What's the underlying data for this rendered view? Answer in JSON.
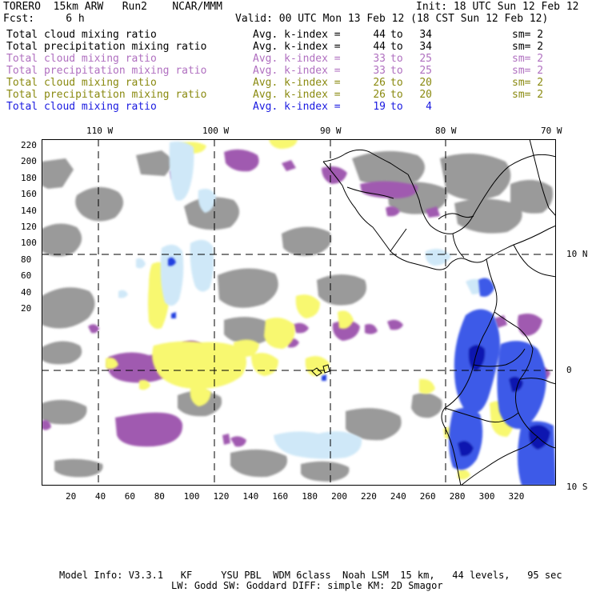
{
  "header": {
    "model": "TORERO  15km ARW   Run2    NCAR/MMM",
    "init": "Init: 18 UTC Sun 12 Feb 12",
    "fcst": "Fcst:     6 h",
    "valid": "Valid: 00 UTC Mon 13 Feb 12 (18 CST Sun 12 Feb 12)"
  },
  "legend": [
    {
      "name": "Total cloud mixing ratio",
      "kidx_label": "Avg. k-index =",
      "from": "44",
      "to_label": "to",
      "to": "34",
      "sm": "sm= 2",
      "color": "#000000"
    },
    {
      "name": "Total precipitation mixing ratio",
      "kidx_label": "Avg. k-index =",
      "from": "44",
      "to_label": "to",
      "to": "34",
      "sm": "sm= 2",
      "color": "#000000"
    },
    {
      "name": "Total cloud mixing ratio",
      "kidx_label": "Avg. k-index =",
      "from": "33",
      "to_label": "to",
      "to": "25",
      "sm": "sm= 2",
      "color": "#b070c0"
    },
    {
      "name": "Total precipitation mixing ratio",
      "kidx_label": "Avg. k-index =",
      "from": "33",
      "to_label": "to",
      "to": "25",
      "sm": "sm= 2",
      "color": "#b070c0"
    },
    {
      "name": "Total cloud mixing ratio",
      "kidx_label": "Avg. k-index =",
      "from": "26",
      "to_label": "to",
      "to": "20",
      "sm": "sm= 2",
      "color": "#8a8a10"
    },
    {
      "name": "Total precipitation mixing ratio",
      "kidx_label": "Avg. k-index =",
      "from": "26",
      "to_label": "to",
      "to": "20",
      "sm": "sm= 2",
      "color": "#8a8a10"
    },
    {
      "name": "Total cloud mixing ratio",
      "kidx_label": "Avg. k-index =",
      "from": "19",
      "to_label": "to",
      "to": "4",
      "sm": "",
      "color": "#1a1ae0"
    }
  ],
  "axes": {
    "top_lon": [
      "110 W",
      "100 W",
      "90 W",
      "80 W",
      "70 W"
    ],
    "right_lat": [
      "10 N",
      "0",
      "10 S"
    ],
    "left_grid": [
      "220",
      "200",
      "180",
      "160",
      "140",
      "120",
      "100",
      "80",
      "60",
      "40",
      "20"
    ],
    "bottom_grid": [
      "20",
      "40",
      "60",
      "80",
      "100",
      "120",
      "140",
      "160",
      "180",
      "200",
      "220",
      "240",
      "260",
      "280",
      "300",
      "320"
    ]
  },
  "colors": {
    "gray": "#9a9a9a",
    "purple": "#a05ab0",
    "yellow": "#f8f870",
    "lightblue": "#cfe8f8",
    "blue": "#2040e0",
    "darkblue": "#0a18b0"
  },
  "footer": {
    "line1": "Model Info: V3.3.1   KF     YSU PBL  WDM 6class  Noah LSM  15 km,   44 levels,   95 sec",
    "line2": "LW: Godd SW: Goddard DIFF: simple KM: 2D Smagor"
  }
}
